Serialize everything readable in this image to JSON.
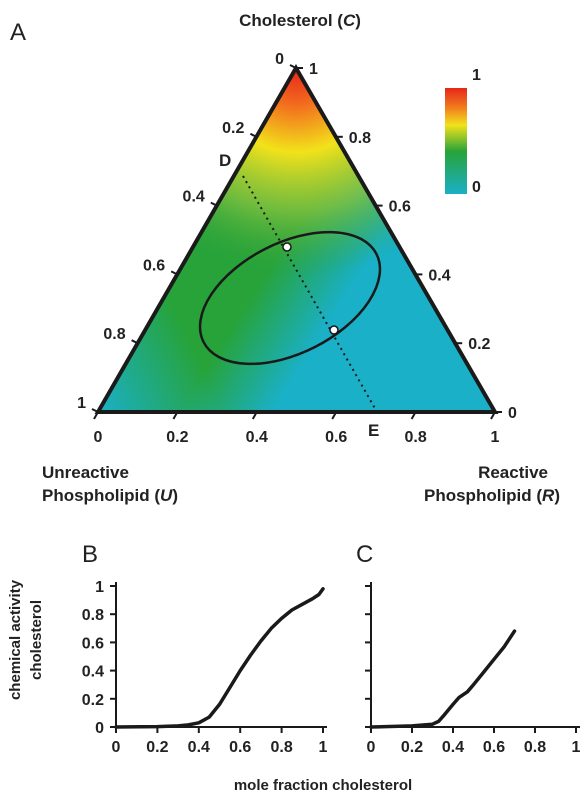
{
  "panel_a": {
    "label": "A",
    "vertex_top_label": "Cholesterol (",
    "vertex_top_label_var": "C",
    "vertex_top_label_end": ")",
    "vertex_left_line1": "Unreactive",
    "vertex_left_line2": "Phospholipid (",
    "vertex_left_var": "U",
    "vertex_right_line1": "Reactive",
    "vertex_right_line2": "Phospholipid (",
    "vertex_right_var": "R",
    "point_d": "D",
    "point_e": "E",
    "colorbar_max": "1",
    "colorbar_min": "0"
  },
  "panel_b": {
    "label": "B"
  },
  "panel_c": {
    "label": "C"
  },
  "shared": {
    "ylabel_line1": "chemical activity",
    "ylabel_line2": "cholesterol",
    "xlabel": "mole fraction cholesterol"
  },
  "colors": {
    "low": "#1ab0c8",
    "mid": "#27a33a",
    "yellow": "#f2e21a",
    "high": "#e8251a"
  },
  "chart_data": [
    {
      "type": "heatmap",
      "subtype": "ternary",
      "axes": {
        "cholesterol_ticks": [
          "0",
          "0.2",
          "0.4",
          "0.6",
          "0.8",
          "1"
        ],
        "reactive_ticks": [
          "1",
          "0.8",
          "0.6",
          "0.4",
          "0.2",
          "0"
        ],
        "bottom_ticks": [
          "0",
          "0.2",
          "0.4",
          "0.6",
          "0.8",
          "1"
        ]
      },
      "colorbar": {
        "range": [
          0,
          1
        ]
      },
      "line_DE": {
        "from": "D",
        "to": "E"
      },
      "marked_points": [
        {
          "C": 0.49,
          "R": 0.26
        },
        {
          "C": 0.25,
          "R": 0.48
        }
      ]
    },
    {
      "type": "line",
      "panel": "B",
      "xlim": [
        0,
        1
      ],
      "ylim": [
        0,
        1
      ],
      "xticks": [
        "0",
        "0.2",
        "0.4",
        "0.6",
        "0.8",
        "1"
      ],
      "yticks": [
        "0",
        "0.2",
        "0.4",
        "0.6",
        "0.8",
        "1"
      ],
      "x": [
        0,
        0.2,
        0.3,
        0.35,
        0.4,
        0.45,
        0.5,
        0.55,
        0.6,
        0.65,
        0.7,
        0.75,
        0.8,
        0.85,
        0.9,
        0.95,
        0.98,
        1.0
      ],
      "y": [
        0,
        0.003,
        0.008,
        0.015,
        0.03,
        0.07,
        0.16,
        0.28,
        0.4,
        0.51,
        0.61,
        0.7,
        0.77,
        0.83,
        0.87,
        0.91,
        0.94,
        0.98
      ]
    },
    {
      "type": "line",
      "panel": "C",
      "xlim": [
        0,
        1
      ],
      "ylim": [
        0,
        1
      ],
      "xticks": [
        "0",
        "0.2",
        "0.4",
        "0.6",
        "0.8",
        "1"
      ],
      "x": [
        0,
        0.2,
        0.3,
        0.33,
        0.36,
        0.4,
        0.43,
        0.47,
        0.5,
        0.55,
        0.6,
        0.65,
        0.7
      ],
      "y": [
        0,
        0.008,
        0.02,
        0.04,
        0.09,
        0.16,
        0.21,
        0.25,
        0.3,
        0.39,
        0.48,
        0.57,
        0.68
      ]
    }
  ]
}
